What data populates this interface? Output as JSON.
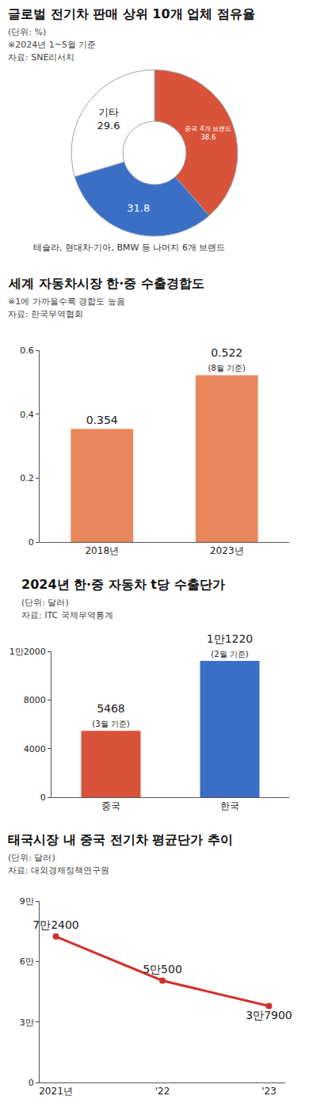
{
  "chart_data": [
    {
      "type": "pie",
      "title": "글로벌 전기차 판매 상위 10개 업체 점유율",
      "subtitle": "(단위: %)",
      "note": "※2024년 1~5월 기준",
      "source": "자료: SNE리서치",
      "categories": [
        "중국 4개 브랜드",
        "테슬라, 현대차·기아, BMW 등 나머지 6개 브랜드",
        "기타"
      ],
      "values": [
        38.6,
        31.8,
        29.6
      ],
      "colors": [
        "#d9533a",
        "#3b6fc6",
        "#ffffff"
      ],
      "data_labels": true
    },
    {
      "type": "bar",
      "title": "세계 자동차시장 한·중 수출경합도",
      "note": "※1에 가까울수록 경합도 높음",
      "source": "자료: 한국무역협회",
      "categories": [
        "2018년",
        "2023년"
      ],
      "values": [
        0.354,
        0.522
      ],
      "value_notes": [
        null,
        "(8월 기준)"
      ],
      "color": "#e8875c",
      "ylim": [
        0,
        0.6
      ],
      "yticks": [
        0,
        0.2,
        0.4,
        0.6
      ],
      "data_labels": true,
      "grid": false
    },
    {
      "type": "bar",
      "title": "2024년 한·중 자동차 t당 수출단가",
      "subtitle": "(단위: 달러)",
      "source": "자료: ITC 국제무역통계",
      "categories": [
        "중국",
        "한국"
      ],
      "values": [
        5468,
        11220
      ],
      "value_labels": [
        "5468",
        "1만1220"
      ],
      "value_notes": [
        "(3월 기준)",
        "(2월 기준)"
      ],
      "colors": [
        "#d9533a",
        "#3b6fc6"
      ],
      "ylim": [
        0,
        12000
      ],
      "yticks": [
        0,
        4000,
        8000,
        {
          "value": 12000,
          "label": "1만2000"
        }
      ],
      "data_labels": true,
      "grid": false
    },
    {
      "type": "line",
      "title": "태국시장 내 중국 전기차 평균단가 추이",
      "subtitle": "(단위: 달러)",
      "source": "자료: 대외경제정책연구원",
      "categories": [
        "2021년",
        "'22",
        "'23"
      ],
      "values": [
        72400,
        50500,
        37900
      ],
      "value_labels": [
        "7만2400",
        "5만500",
        "3만7900"
      ],
      "color": "#d0312d",
      "marker": "circle",
      "ylim": [
        0,
        90000
      ],
      "yticks": [
        0,
        {
          "value": 30000,
          "label": "3만"
        },
        {
          "value": 60000,
          "label": "6만"
        },
        {
          "value": 90000,
          "label": "9만"
        }
      ],
      "data_labels": true,
      "grid": false
    }
  ]
}
